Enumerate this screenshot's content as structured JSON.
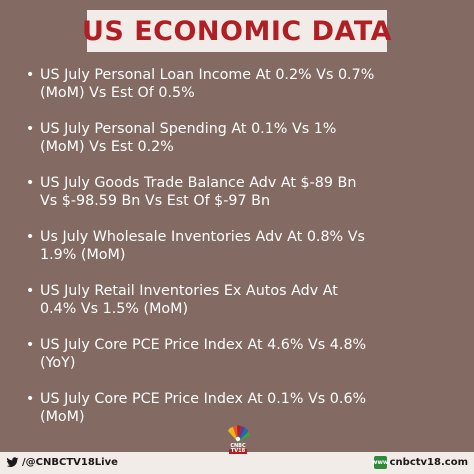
{
  "header": {
    "title": "US ECONOMIC DATA"
  },
  "items": [
    {
      "bullet": "•",
      "text": "US July Personal Loan Income At 0.2% Vs 0.7%\n(MoM) Vs Est Of 0.5%"
    },
    {
      "bullet": "•",
      "text": "US July Personal Spending At 0.1% Vs 1%\n(MoM) Vs Est 0.2%"
    },
    {
      "bullet": "•",
      "text": "US July Goods Trade Balance Adv At $-89 Bn\nVs $-98.59 Bn Vs Est Of $-97 Bn"
    },
    {
      "bullet": "•",
      "text": "Us July Wholesale Inventories Adv At 0.8% Vs\n1.9% (MoM)"
    },
    {
      "bullet": "•",
      "text": "US July Retail Inventories Ex Autos Adv At\n0.4% Vs 1.5% (MoM)"
    },
    {
      "bullet": "•",
      "text": "US July Core PCE Price Index At 4.6% Vs 4.8%\n(YoY)"
    },
    {
      "bullet": "•",
      "text": "US July Core PCE Price Index At 0.1% Vs 0.6%\n(MoM)"
    }
  ],
  "logo": {
    "top": "CNBC",
    "bottom": "TV18",
    "icon": "peacock-logo-icon"
  },
  "footer": {
    "handle": "/@CNBCTV18Live",
    "website": "cnbctv18.com",
    "left_icon": "twitter-icon",
    "right_icon": "web-icon",
    "right_icon_text": "www"
  },
  "colors": {
    "background": "#836a62",
    "banner": "#f1ece8",
    "title": "#b01f23",
    "body_text": "#ffffff"
  }
}
